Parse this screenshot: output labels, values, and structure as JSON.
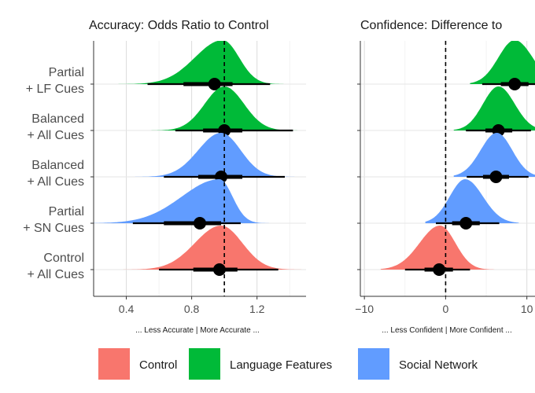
{
  "chart_data": [
    {
      "type": "density",
      "title": "Accuracy: Odds Ratio to Control",
      "xlabel": "... Less Accurate  |  More Accurate ...",
      "xlim": [
        0.2,
        1.5
      ],
      "xticks": [
        0.4,
        0.8,
        1.2
      ],
      "xtick_labels": [
        "0.4",
        "0.8",
        "1.2"
      ],
      "reference_line": {
        "x": 1.0,
        "style": "dashed"
      },
      "grid": true,
      "categories": [
        "Partial\n+ LF Cues",
        "Balanced\n+ All Cues",
        "Balanced\n+ All Cues",
        "Partial\n+ SN Cues",
        "Control\n+ All Cues"
      ],
      "series": [
        {
          "name": "Language Features",
          "group": "Language Features",
          "row": 0,
          "point": 0.94,
          "interval_66": [
            0.75,
            1.05
          ],
          "interval_95": [
            0.53,
            1.28
          ],
          "mode": 0.99,
          "spread_left": 0.17,
          "spread_right": 0.1,
          "support": [
            0.25,
            1.5
          ]
        },
        {
          "name": "Language Features",
          "group": "Language Features",
          "row": 1,
          "point": 1.0,
          "interval_66": [
            0.87,
            1.11
          ],
          "interval_95": [
            0.7,
            1.42
          ],
          "mode": 1.0,
          "spread_left": 0.12,
          "spread_right": 0.12,
          "support": [
            0.5,
            1.5
          ]
        },
        {
          "name": "Social Network",
          "group": "Social Network",
          "row": 2,
          "point": 0.98,
          "interval_66": [
            0.84,
            1.11
          ],
          "interval_95": [
            0.63,
            1.37
          ],
          "mode": 0.98,
          "spread_left": 0.14,
          "spread_right": 0.12,
          "support": [
            0.45,
            1.5
          ]
        },
        {
          "name": "Social Network",
          "group": "Social Network",
          "row": 3,
          "point": 0.85,
          "interval_66": [
            0.63,
            0.98
          ],
          "interval_95": [
            0.44,
            1.1
          ],
          "mode": 0.97,
          "spread_left": 0.23,
          "spread_right": 0.08,
          "support": [
            0.2,
            1.3
          ]
        },
        {
          "name": "Control",
          "group": "Control",
          "row": 4,
          "point": 0.97,
          "interval_66": [
            0.81,
            1.08
          ],
          "interval_95": [
            0.6,
            1.33
          ],
          "mode": 0.98,
          "spread_left": 0.16,
          "spread_right": 0.13,
          "support": [
            0.3,
            1.5
          ]
        }
      ]
    },
    {
      "type": "density",
      "title": "Confidence: Difference to",
      "xlabel": "... Less Confident  |  More Confident ...",
      "xlim": [
        -10.5,
        11
      ],
      "xticks": [
        -10,
        0,
        10
      ],
      "xtick_labels": [
        "−10",
        "0",
        "10"
      ],
      "reference_line": {
        "x": 0,
        "style": "dashed"
      },
      "grid": true,
      "series": [
        {
          "name": "Language Features",
          "group": "Language Features",
          "row": 0,
          "point": 8.5,
          "interval_66": [
            6.8,
            10.2
          ],
          "interval_95": [
            4.5,
            12.5
          ],
          "mode": 8.5,
          "spread_left": 2.0,
          "spread_right": 2.2,
          "support": [
            3,
            14
          ]
        },
        {
          "name": "Language Features",
          "group": "Language Features",
          "row": 1,
          "point": 6.5,
          "interval_66": [
            4.9,
            8.2
          ],
          "interval_95": [
            2.5,
            10.5
          ],
          "mode": 6.5,
          "spread_left": 1.9,
          "spread_right": 2.0,
          "support": [
            1,
            13
          ]
        },
        {
          "name": "Social Network",
          "group": "Social Network",
          "row": 2,
          "point": 6.2,
          "interval_66": [
            4.6,
            7.8
          ],
          "interval_95": [
            2.6,
            10.2
          ],
          "mode": 6.3,
          "spread_left": 2.0,
          "spread_right": 1.9,
          "support": [
            1,
            12
          ]
        },
        {
          "name": "Social Network",
          "group": "Social Network",
          "row": 3,
          "point": 2.5,
          "interval_66": [
            0.8,
            4.2
          ],
          "interval_95": [
            -1.2,
            6.6
          ],
          "mode": 2.4,
          "spread_left": 1.9,
          "spread_right": 2.2,
          "support": [
            -2.5,
            9
          ]
        },
        {
          "name": "Control",
          "group": "Control",
          "row": 4,
          "point": -0.8,
          "interval_66": [
            -2.6,
            0.9
          ],
          "interval_95": [
            -5.0,
            3.0
          ],
          "mode": -0.7,
          "spread_left": 2.5,
          "spread_right": 1.9,
          "support": [
            -8,
            6
          ]
        }
      ]
    }
  ],
  "legend": {
    "placement": "bottom",
    "items": [
      {
        "label": "Control",
        "color": "#f8766d"
      },
      {
        "label": "Language Features",
        "color": "#00ba38"
      },
      {
        "label": "Social Network",
        "color": "#619cff"
      }
    ]
  },
  "colors": {
    "Control": "#f8766d",
    "Language Features": "#00ba38",
    "Social Network": "#619cff",
    "interval": "#000000"
  }
}
